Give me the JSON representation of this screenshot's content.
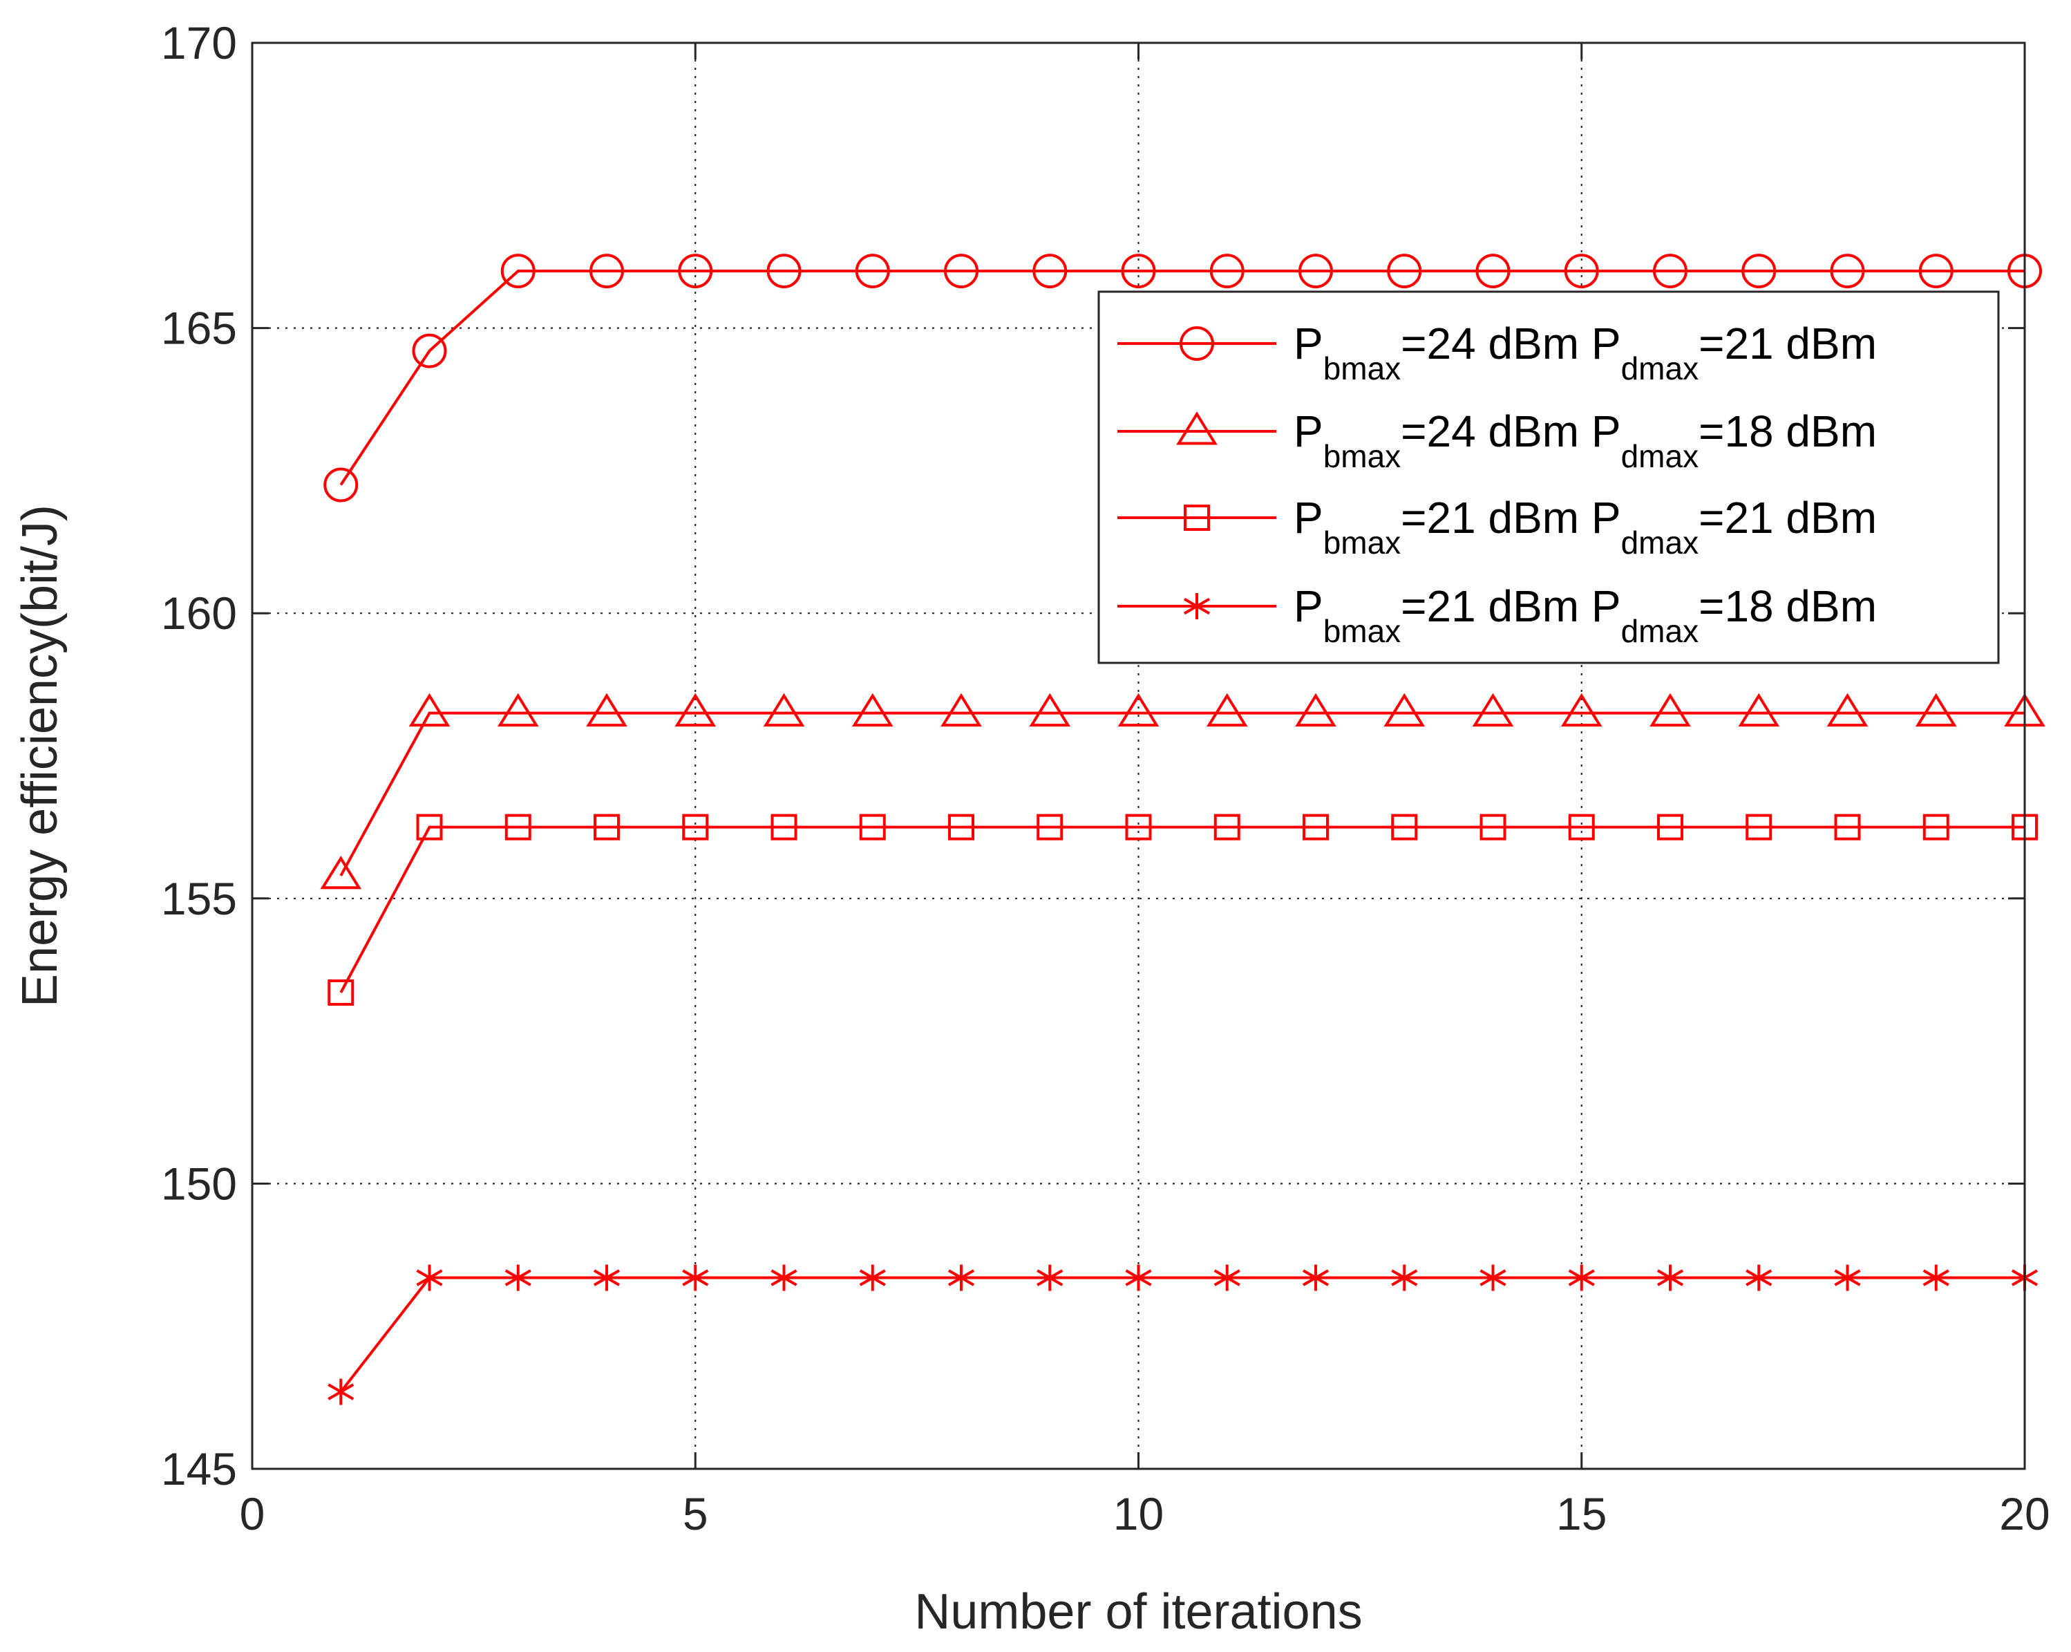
{
  "chart_data": {
    "type": "line",
    "title": "",
    "xlabel": "Number of iterations",
    "ylabel": "Energy efficiency(bit/J)",
    "xlim": [
      0,
      20
    ],
    "ylim": [
      145,
      170
    ],
    "xticks": [
      0,
      5,
      10,
      15,
      20
    ],
    "yticks": [
      145,
      150,
      155,
      160,
      165,
      170
    ],
    "xtick_labels": [
      "0",
      "5",
      "10",
      "15",
      "20"
    ],
    "ytick_labels": [
      "145",
      "150",
      "155",
      "160",
      "165",
      "170"
    ],
    "grid": true,
    "legend_position": "top-right",
    "line_color": "#ff0000",
    "x": [
      1,
      2,
      3,
      4,
      5,
      6,
      7,
      8,
      9,
      10,
      11,
      12,
      13,
      14,
      15,
      16,
      17,
      18,
      19,
      20
    ],
    "series": [
      {
        "label_parts": [
          "P",
          "bmax",
          "=24 dBm P",
          "dmax",
          "=21 dBm"
        ],
        "marker": "circle",
        "values": [
          162.25,
          164.6,
          166.0,
          166.0,
          166.0,
          166.0,
          166.0,
          166.0,
          166.0,
          166.0,
          166.0,
          166.0,
          166.0,
          166.0,
          166.0,
          166.0,
          166.0,
          166.0,
          166.0,
          166.0
        ]
      },
      {
        "label_parts": [
          "P",
          "bmax",
          "=24 dBm P",
          "dmax",
          "=18 dBm"
        ],
        "marker": "triangle",
        "values": [
          155.4,
          158.25,
          158.25,
          158.25,
          158.25,
          158.25,
          158.25,
          158.25,
          158.25,
          158.25,
          158.25,
          158.25,
          158.25,
          158.25,
          158.25,
          158.25,
          158.25,
          158.25,
          158.25,
          158.25
        ]
      },
      {
        "label_parts": [
          "P",
          "bmax",
          "=21 dBm P",
          "dmax",
          "=21 dBm"
        ],
        "marker": "square",
        "values": [
          153.35,
          156.25,
          156.25,
          156.25,
          156.25,
          156.25,
          156.25,
          156.25,
          156.25,
          156.25,
          156.25,
          156.25,
          156.25,
          156.25,
          156.25,
          156.25,
          156.25,
          156.25,
          156.25,
          156.25
        ]
      },
      {
        "label_parts": [
          "P",
          "bmax",
          "=21 dBm P",
          "dmax",
          "=18 dBm"
        ],
        "marker": "asterisk",
        "values": [
          146.35,
          148.35,
          148.35,
          148.35,
          148.35,
          148.35,
          148.35,
          148.35,
          148.35,
          148.35,
          148.35,
          148.35,
          148.35,
          148.35,
          148.35,
          148.35,
          148.35,
          148.35,
          148.35,
          148.35
        ]
      }
    ]
  }
}
